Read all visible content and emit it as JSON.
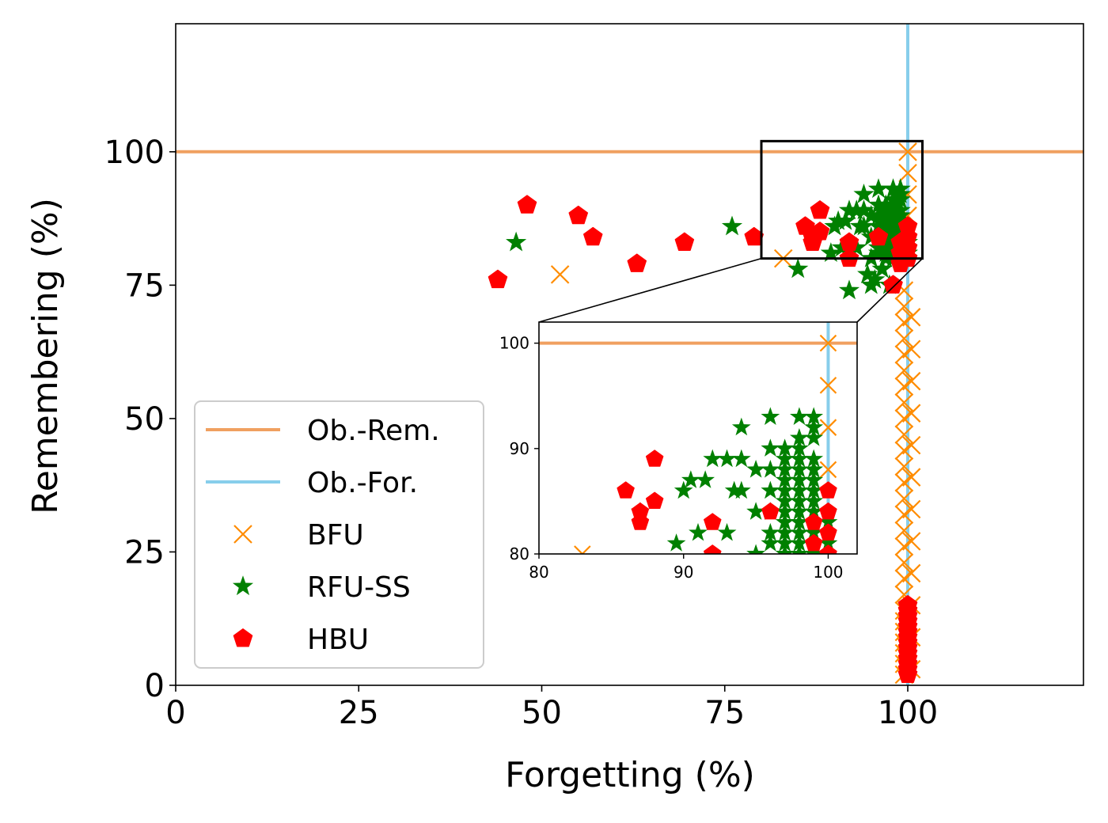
{
  "chart_data": {
    "type": "scatter",
    "xlabel": "Forgetting (%)",
    "ylabel": "Remembering (%)",
    "xlim": [
      0,
      124
    ],
    "ylim": [
      0,
      124
    ],
    "xticks": [
      "0",
      "25",
      "50",
      "75",
      "100"
    ],
    "yticks": [
      "0",
      "25",
      "50",
      "75",
      "100"
    ],
    "grid": false,
    "legend_position": "lower-left",
    "reference_lines": [
      {
        "name": "Ob.-Rem.",
        "orientation": "horizontal",
        "value": 100,
        "color": "#F0A060"
      },
      {
        "name": "Ob.-For.",
        "orientation": "vertical",
        "value": 100,
        "color": "#87CEEB"
      }
    ],
    "series": [
      {
        "name": "BFU",
        "marker": "x",
        "color": "#FF8C00",
        "points": [
          [
            52.5,
            77
          ],
          [
            83,
            80
          ],
          [
            99.5,
            2
          ],
          [
            99.5,
            4
          ],
          [
            99.5,
            6
          ],
          [
            99.5,
            8
          ],
          [
            99.5,
            10
          ],
          [
            99.5,
            12
          ],
          [
            99.5,
            14
          ],
          [
            99.5,
            17
          ],
          [
            99.5,
            20
          ],
          [
            99.5,
            23
          ],
          [
            99.5,
            26
          ],
          [
            99.5,
            29
          ],
          [
            99.5,
            32
          ],
          [
            99.5,
            35
          ],
          [
            99.5,
            38
          ],
          [
            99.5,
            41
          ],
          [
            99.5,
            44
          ],
          [
            99.5,
            47
          ],
          [
            99.5,
            50
          ],
          [
            99.5,
            53
          ],
          [
            99.5,
            56
          ],
          [
            99.5,
            59
          ],
          [
            99.5,
            62
          ],
          [
            99.5,
            65
          ],
          [
            99.5,
            68
          ],
          [
            99.5,
            71
          ],
          [
            99.5,
            74
          ],
          [
            100.5,
            3
          ],
          [
            100.5,
            9
          ],
          [
            100.5,
            15
          ],
          [
            100.5,
            21
          ],
          [
            100.5,
            27
          ],
          [
            100.5,
            33
          ],
          [
            100.5,
            39
          ],
          [
            100.5,
            45
          ],
          [
            100.5,
            51
          ],
          [
            100.5,
            57
          ],
          [
            100.5,
            63
          ],
          [
            100.5,
            69
          ],
          [
            100,
            88
          ],
          [
            100,
            92
          ],
          [
            100,
            96
          ],
          [
            100,
            100
          ]
        ]
      },
      {
        "name": "RFU-SS",
        "marker": "star",
        "color": "#008000",
        "points": [
          [
            46.5,
            83
          ],
          [
            76,
            86
          ],
          [
            85,
            78
          ],
          [
            87,
            84
          ],
          [
            89.5,
            81
          ],
          [
            90,
            86
          ],
          [
            90.5,
            87
          ],
          [
            91,
            82
          ],
          [
            91.5,
            87
          ],
          [
            92,
            74
          ],
          [
            92,
            89
          ],
          [
            93,
            82
          ],
          [
            93,
            89
          ],
          [
            93.5,
            86
          ],
          [
            94,
            92
          ],
          [
            94,
            89
          ],
          [
            94,
            86
          ],
          [
            94.5,
            77
          ],
          [
            95,
            75
          ],
          [
            95,
            80
          ],
          [
            95,
            84
          ],
          [
            95,
            88
          ],
          [
            95.5,
            76
          ],
          [
            96,
            81
          ],
          [
            96,
            82
          ],
          [
            96,
            84
          ],
          [
            96,
            86
          ],
          [
            96,
            88
          ],
          [
            96,
            90
          ],
          [
            96,
            93
          ],
          [
            96.5,
            78
          ],
          [
            97,
            80
          ],
          [
            97,
            81
          ],
          [
            97,
            82
          ],
          [
            97,
            83
          ],
          [
            97,
            84
          ],
          [
            97,
            85
          ],
          [
            97,
            86
          ],
          [
            97,
            87
          ],
          [
            97,
            88
          ],
          [
            97,
            89
          ],
          [
            97,
            90
          ],
          [
            97.5,
            75
          ],
          [
            98,
            80
          ],
          [
            98,
            81
          ],
          [
            98,
            82
          ],
          [
            98,
            83
          ],
          [
            98,
            84
          ],
          [
            98,
            85
          ],
          [
            98,
            86
          ],
          [
            98,
            87
          ],
          [
            98,
            88
          ],
          [
            98,
            89
          ],
          [
            98,
            90
          ],
          [
            98,
            91
          ],
          [
            98,
            93
          ],
          [
            99,
            80
          ],
          [
            99,
            81
          ],
          [
            99,
            82
          ],
          [
            99,
            83
          ],
          [
            99,
            84
          ],
          [
            99,
            85
          ],
          [
            99,
            86
          ],
          [
            99,
            87
          ],
          [
            99,
            88
          ],
          [
            99,
            89
          ],
          [
            99,
            91
          ],
          [
            99,
            92
          ],
          [
            99,
            93
          ],
          [
            100,
            81
          ],
          [
            100,
            83
          ]
        ]
      },
      {
        "name": "HBU",
        "marker": "pentagon",
        "color": "#FF0000",
        "points": [
          [
            44,
            76
          ],
          [
            48,
            90
          ],
          [
            55,
            88
          ],
          [
            57,
            84
          ],
          [
            63,
            79
          ],
          [
            69.5,
            83
          ],
          [
            79,
            84
          ],
          [
            86,
            86
          ],
          [
            87,
            83
          ],
          [
            87,
            84
          ],
          [
            88,
            85
          ],
          [
            88,
            89
          ],
          [
            92,
            80
          ],
          [
            92,
            83
          ],
          [
            96,
            84
          ],
          [
            98,
            75
          ],
          [
            99,
            79
          ],
          [
            99,
            81
          ],
          [
            99,
            83
          ],
          [
            100,
            80
          ],
          [
            100,
            82
          ],
          [
            100,
            84
          ],
          [
            100,
            86
          ],
          [
            100,
            2
          ],
          [
            100,
            3
          ],
          [
            100,
            4
          ],
          [
            100,
            5
          ],
          [
            100,
            6
          ],
          [
            100,
            7
          ],
          [
            100,
            8
          ],
          [
            100,
            9
          ],
          [
            100,
            10
          ],
          [
            100,
            11
          ],
          [
            100,
            12
          ],
          [
            100,
            13
          ],
          [
            100,
            14
          ],
          [
            100,
            15
          ]
        ]
      }
    ],
    "inset": {
      "xlim": [
        80,
        102
      ],
      "ylim": [
        80,
        102
      ],
      "xticks": [
        "80",
        "90",
        "100"
      ],
      "yticks": [
        "80",
        "90",
        "100"
      ]
    }
  }
}
